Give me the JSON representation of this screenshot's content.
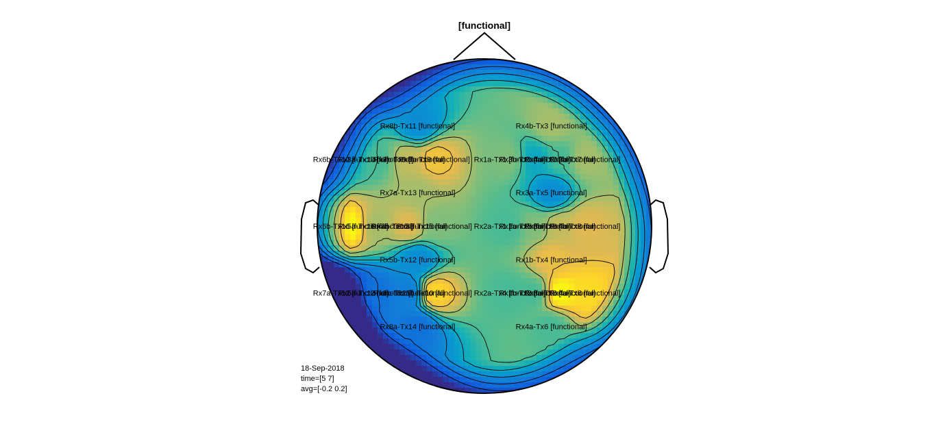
{
  "chart_data": {
    "type": "heatmap",
    "title": "[functional]",
    "colormap": "parula",
    "channels": [
      {
        "label": "Rx8b-Tx11 [functional]",
        "x": -0.4,
        "y": 0.6,
        "value": -0.05
      },
      {
        "label": "Rx4b-Tx3 [functional]",
        "x": 0.4,
        "y": 0.6,
        "value": 0.1
      },
      {
        "label": "Rx6b-Tx10 [functional]",
        "x": -0.8,
        "y": 0.4,
        "value": 0.02
      },
      {
        "label": "Rx8a-Tx10 [functional]",
        "x": -0.65,
        "y": 0.4,
        "value": 0.05
      },
      {
        "label": "Rx7b-Tx9 [functional]",
        "x": -0.45,
        "y": 0.4,
        "value": 0.12
      },
      {
        "label": "Rx5a-Tx9 [functional]",
        "x": -0.3,
        "y": 0.4,
        "value": 0.16
      },
      {
        "label": "Rx1a-Tx1 [functional]",
        "x": 0.15,
        "y": 0.4,
        "value": 0.08
      },
      {
        "label": "Rx3b-Tx1 [functional]",
        "x": 0.3,
        "y": 0.4,
        "value": 0.0
      },
      {
        "label": "Rx4a-Tx7 [functional]",
        "x": 0.45,
        "y": 0.4,
        "value": 0.05
      },
      {
        "label": "Rx2b-Tx7 [functional]",
        "x": 0.6,
        "y": 0.4,
        "value": 0.1
      },
      {
        "label": "Rx7a-Tx13 [functional]",
        "x": -0.4,
        "y": 0.2,
        "value": 0.1
      },
      {
        "label": "Rx3a-Tx5 [functional]",
        "x": 0.4,
        "y": 0.2,
        "value": -0.05
      },
      {
        "label": "Rx6b-Tx16 [functional]",
        "x": -0.8,
        "y": 0.0,
        "value": 0.2
      },
      {
        "label": "Rx5a-Tx16 [functional]",
        "x": -0.65,
        "y": 0.0,
        "value": 0.1
      },
      {
        "label": "Rx7b-Tx15 [functional]",
        "x": -0.45,
        "y": 0.0,
        "value": 0.14
      },
      {
        "label": "Rx8a-Tx15 [functional]",
        "x": -0.3,
        "y": 0.0,
        "value": 0.08
      },
      {
        "label": "Rx2a-Tx1 [functional]",
        "x": 0.15,
        "y": 0.0,
        "value": 0.05
      },
      {
        "label": "Rx1a-Tx5 [functional]",
        "x": 0.3,
        "y": 0.0,
        "value": 0.08
      },
      {
        "label": "Rx3b-Tx8 [functional]",
        "x": 0.45,
        "y": 0.0,
        "value": 0.12
      },
      {
        "label": "Rx4b-Tx8 [functional]",
        "x": 0.6,
        "y": 0.0,
        "value": 0.14
      },
      {
        "label": "Rx5b-Tx12 [functional]",
        "x": -0.4,
        "y": -0.2,
        "value": -0.05
      },
      {
        "label": "Rx1b-Tx4 [functional]",
        "x": 0.4,
        "y": -0.2,
        "value": 0.15
      },
      {
        "label": "Rx7a-Tx12 [functional]",
        "x": -0.8,
        "y": -0.4,
        "value": -0.18
      },
      {
        "label": "Rx6a-Tx12 [functional]",
        "x": -0.65,
        "y": -0.4,
        "value": -0.1
      },
      {
        "label": "Rx8b-Tx2 [functional]",
        "x": -0.45,
        "y": -0.4,
        "value": -0.08
      },
      {
        "label": "Rx5b-Tx10 [functional]",
        "x": -0.3,
        "y": -0.4,
        "value": 0.18
      },
      {
        "label": "Rx2a-Tx4 [functional]",
        "x": 0.15,
        "y": -0.4,
        "value": 0.05
      },
      {
        "label": "Rx1b-Tx2 [functional]",
        "x": 0.3,
        "y": -0.4,
        "value": 0.05
      },
      {
        "label": "Rx3a-Tx6 [functional]",
        "x": 0.45,
        "y": -0.4,
        "value": 0.2
      },
      {
        "label": "Rx4a-Tx6 [functional]",
        "x": 0.6,
        "y": -0.4,
        "value": 0.18
      },
      {
        "label": "Rx8a-Tx14 [functional]",
        "x": -0.4,
        "y": -0.6,
        "value": -0.1
      },
      {
        "label": "Rx4a-Tx6 [functional]",
        "x": 0.4,
        "y": -0.6,
        "value": 0.05
      }
    ],
    "clim": [
      -0.2,
      0.2
    ],
    "grid": false,
    "legend": "none"
  },
  "info": {
    "date": "18-Sep-2018",
    "time": "time=[5 7]",
    "avg": "avg=[-0.2 0.2]"
  }
}
